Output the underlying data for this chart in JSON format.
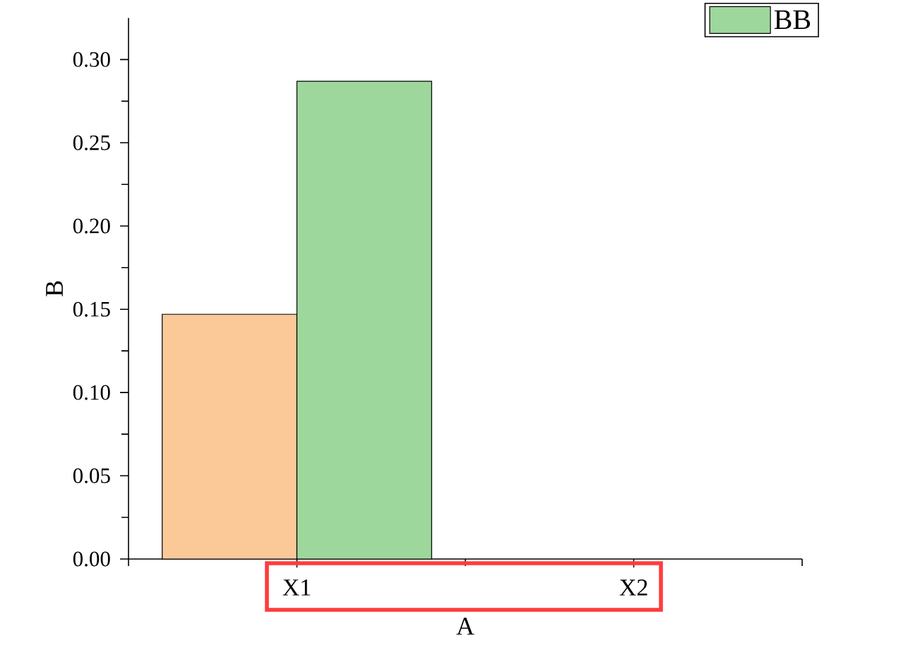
{
  "chart_data": {
    "type": "bar",
    "xlabel": "A",
    "ylabel": "B",
    "categories": [
      "X1",
      "X2"
    ],
    "series": [
      {
        "color": "#fbc898",
        "values": [
          0.147,
          null
        ]
      },
      {
        "name": "BB",
        "color": "#9ed79b",
        "values": [
          0.287,
          null
        ]
      }
    ],
    "ylim": [
      0,
      0.325
    ],
    "yticks": [
      {
        "value": 0,
        "label": "0.00"
      },
      0.05,
      {
        "value": 0.1,
        "label": "0.10"
      },
      0.15,
      {
        "value": 0.2,
        "label": "0.20"
      },
      0.25,
      {
        "value": 0.3,
        "label": "0.30"
      }
    ],
    "legend": "top right"
  }
}
